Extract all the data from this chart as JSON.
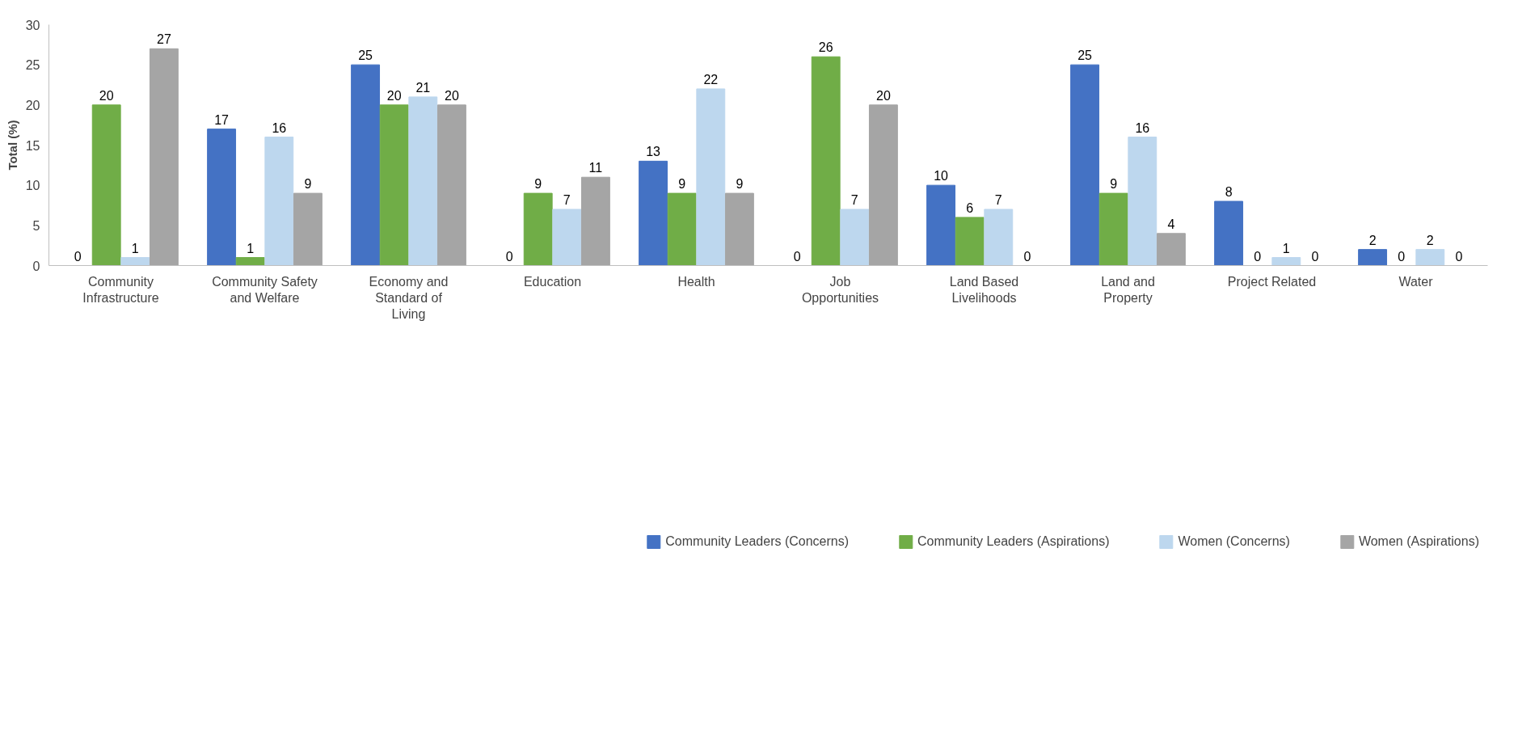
{
  "chart_data": {
    "type": "bar",
    "ylabel": "Total (%)",
    "categories": [
      "Community Infrastructure",
      "Community Safety and Welfare",
      "Economy and Standard of Living",
      "Education",
      "Health",
      "Job Opportunities",
      "Land Based Livelihoods",
      "Land and Property",
      "Project Related",
      "Water"
    ],
    "series": [
      {
        "name": "Community Leaders (Concerns)",
        "color": "#4472c4",
        "values": [
          0,
          17,
          25,
          0,
          13,
          0,
          10,
          25,
          8,
          2
        ]
      },
      {
        "name": "Community Leaders (Aspirations)",
        "color": "#70ad47",
        "values": [
          20,
          1,
          20,
          9,
          9,
          26,
          6,
          9,
          0,
          0
        ]
      },
      {
        "name": "Women (Concerns)",
        "color": "#bdd7ee",
        "values": [
          1,
          16,
          21,
          7,
          22,
          7,
          7,
          16,
          1,
          2
        ]
      },
      {
        "name": "Women (Aspirations)",
        "color": "#a5a5a5",
        "values": [
          27,
          9,
          20,
          11,
          9,
          20,
          0,
          4,
          0,
          0
        ]
      }
    ],
    "ylim": [
      0,
      30
    ],
    "yticks": [
      0,
      5,
      10,
      15,
      20,
      25,
      30
    ],
    "grid": false,
    "legend": "bottom",
    "data_labels": true
  }
}
